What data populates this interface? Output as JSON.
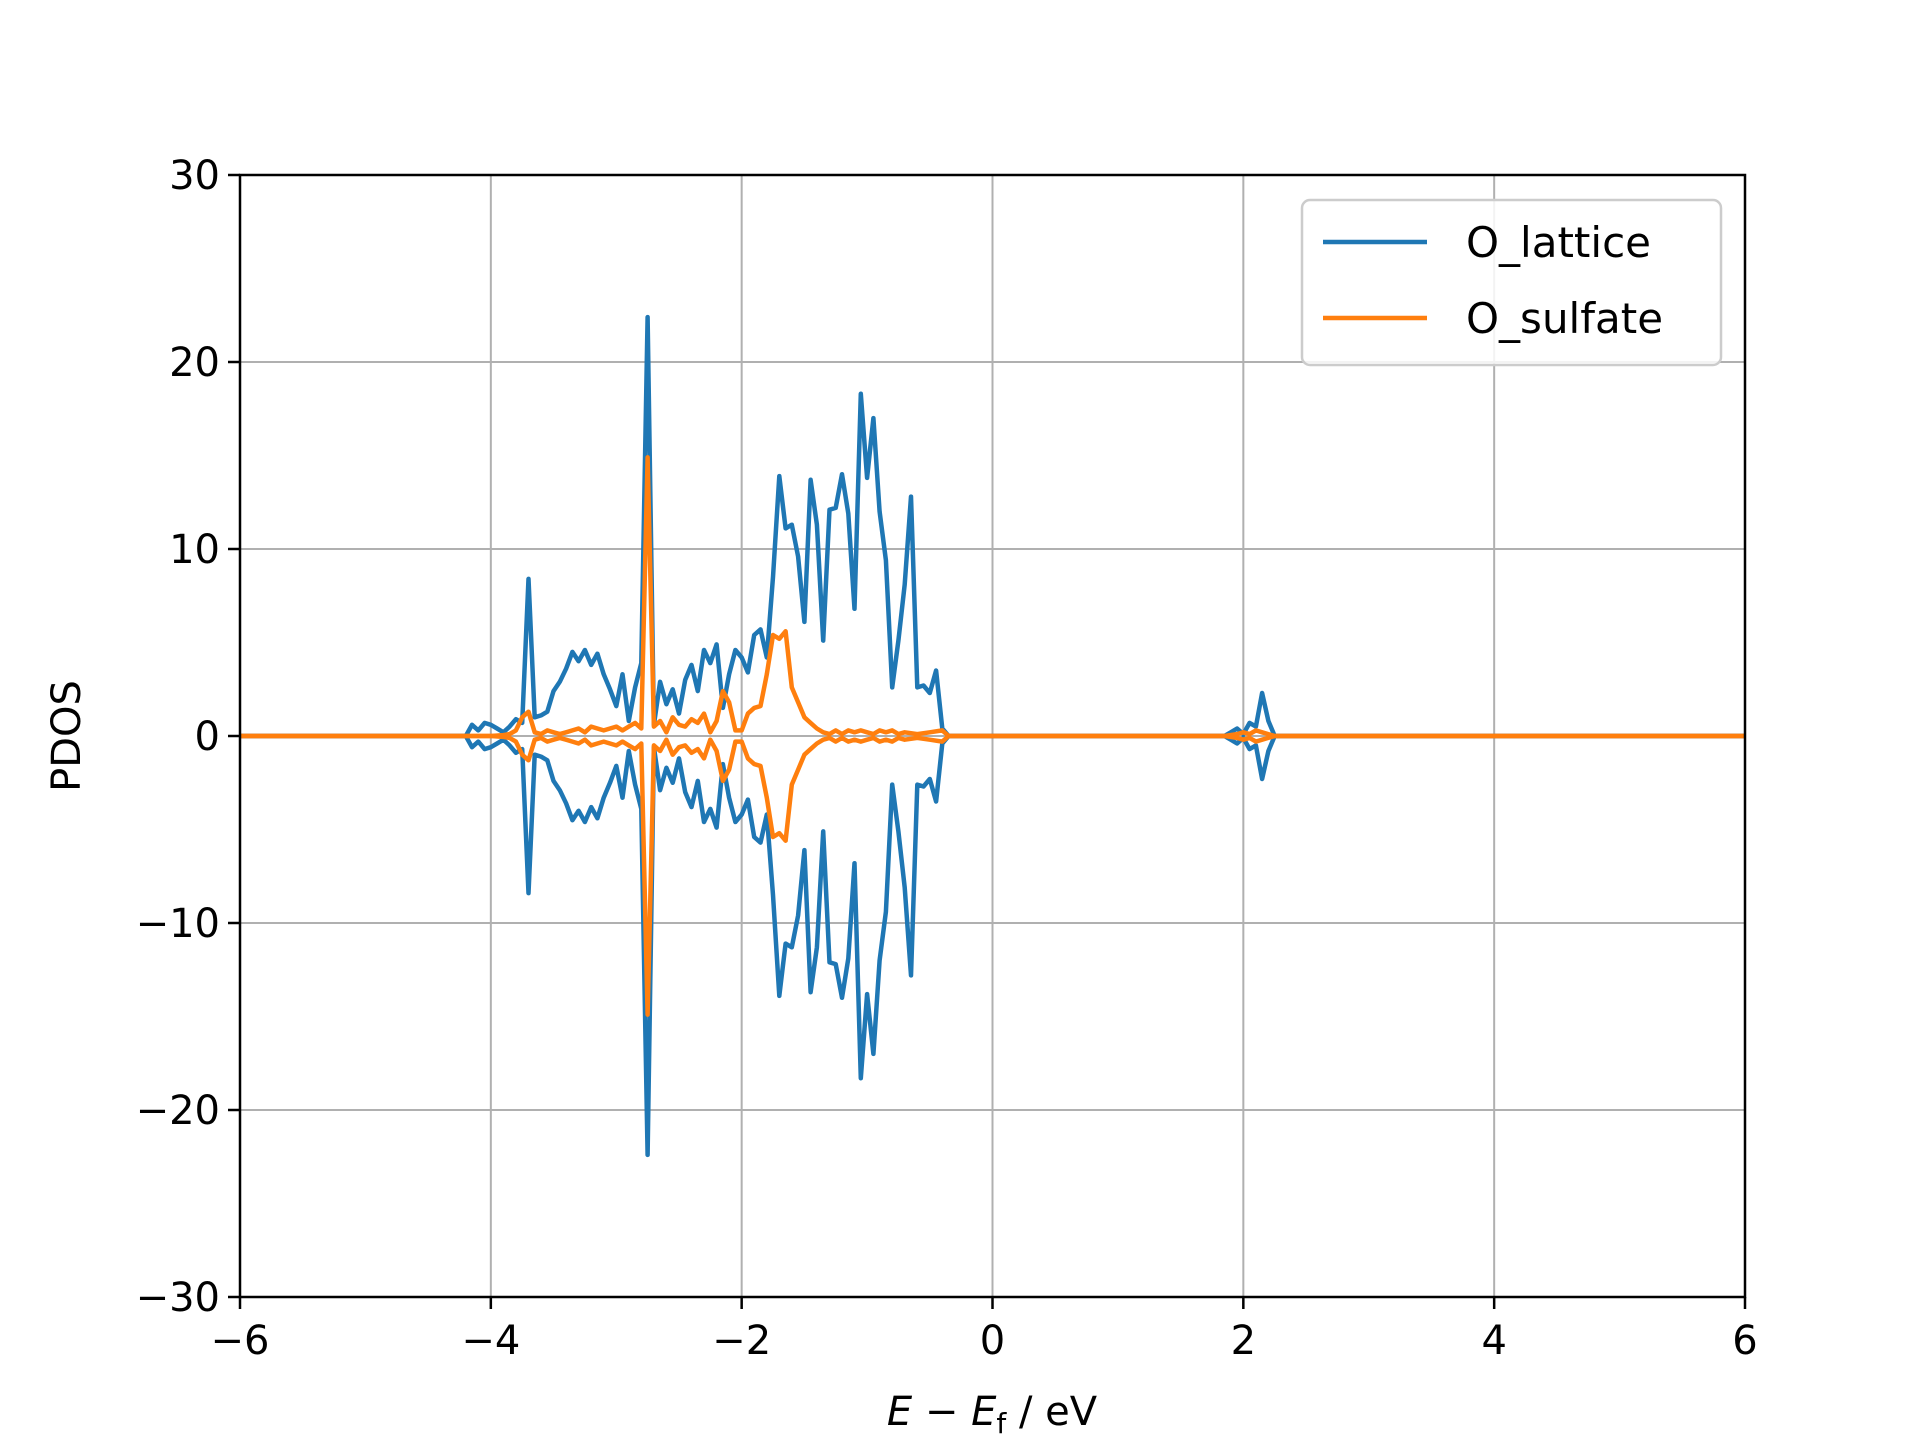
{
  "chart_data": {
    "type": "line",
    "title": "",
    "xlabel_parts": {
      "E": "E",
      "minus": " − ",
      "Ef_base": "E",
      "Ef_sub": "f",
      "unit": " / eV"
    },
    "ylabel": "PDOS",
    "xlim": [
      -6,
      6
    ],
    "ylim": [
      -30,
      30
    ],
    "x_ticks": [
      -6,
      -4,
      -2,
      0,
      2,
      4,
      6
    ],
    "x_tick_labels": [
      "−6",
      "−4",
      "−2",
      "0",
      "2",
      "4",
      "6"
    ],
    "y_ticks": [
      -30,
      -20,
      -10,
      0,
      10,
      20,
      30
    ],
    "y_tick_labels": [
      "−30",
      "−20",
      "−10",
      "0",
      "10",
      "20",
      "30"
    ],
    "grid": true,
    "legend_placement": "top-right",
    "mirrored": true,
    "series": [
      {
        "name": "O_lattice",
        "color": "#1f77b4",
        "x": [
          -6.0,
          -4.2,
          -4.15,
          -4.1,
          -4.05,
          -4.0,
          -3.95,
          -3.9,
          -3.85,
          -3.8,
          -3.75,
          -3.7,
          -3.65,
          -3.6,
          -3.55,
          -3.5,
          -3.45,
          -3.4,
          -3.35,
          -3.3,
          -3.25,
          -3.2,
          -3.15,
          -3.1,
          -3.05,
          -3.0,
          -2.95,
          -2.9,
          -2.85,
          -2.8,
          -2.75,
          -2.7,
          -2.65,
          -2.6,
          -2.55,
          -2.5,
          -2.45,
          -2.4,
          -2.35,
          -2.3,
          -2.25,
          -2.2,
          -2.15,
          -2.1,
          -2.05,
          -2.0,
          -1.95,
          -1.9,
          -1.85,
          -1.8,
          -1.75,
          -1.7,
          -1.65,
          -1.6,
          -1.55,
          -1.5,
          -1.45,
          -1.4,
          -1.35,
          -1.3,
          -1.25,
          -1.2,
          -1.15,
          -1.1,
          -1.05,
          -1.0,
          -0.95,
          -0.9,
          -0.85,
          -0.8,
          -0.75,
          -0.7,
          -0.65,
          -0.6,
          -0.55,
          -0.5,
          -0.45,
          -0.4,
          -0.35,
          1.85,
          1.9,
          1.95,
          2.0,
          2.05,
          2.1,
          2.15,
          2.2,
          2.25,
          6.0
        ],
        "y": [
          0,
          0,
          0.6,
          0.3,
          0.7,
          0.6,
          0.4,
          0.2,
          0.5,
          0.9,
          0.7,
          8.4,
          1.0,
          1.1,
          1.3,
          2.4,
          2.9,
          3.6,
          4.5,
          4.0,
          4.6,
          3.8,
          4.4,
          3.3,
          2.5,
          1.6,
          3.3,
          0.8,
          2.6,
          3.9,
          22.4,
          0.6,
          2.9,
          1.7,
          2.5,
          1.2,
          3.0,
          3.8,
          2.4,
          4.6,
          3.9,
          4.9,
          1.5,
          3.3,
          4.6,
          4.2,
          3.4,
          5.4,
          5.7,
          4.2,
          8.5,
          13.9,
          11.1,
          11.3,
          9.6,
          6.1,
          13.7,
          11.3,
          5.1,
          12.1,
          12.2,
          14.0,
          11.9,
          6.8,
          18.3,
          13.8,
          17.0,
          12.0,
          9.4,
          2.6,
          5.1,
          8.1,
          12.8,
          2.6,
          2.7,
          2.3,
          3.5,
          0.4,
          0,
          0,
          0.2,
          0.4,
          0.1,
          0.7,
          0.5,
          2.3,
          0.8,
          0,
          0
        ]
      },
      {
        "name": "O_sulfate",
        "color": "#ff7f0e",
        "x": [
          -6.0,
          -4.0,
          -3.9,
          -3.85,
          -3.8,
          -3.75,
          -3.7,
          -3.65,
          -3.6,
          -3.55,
          -3.5,
          -3.45,
          -3.4,
          -3.35,
          -3.3,
          -3.25,
          -3.2,
          -3.15,
          -3.1,
          -3.05,
          -3.0,
          -2.95,
          -2.9,
          -2.85,
          -2.8,
          -2.75,
          -2.7,
          -2.65,
          -2.6,
          -2.55,
          -2.5,
          -2.45,
          -2.4,
          -2.35,
          -2.3,
          -2.25,
          -2.2,
          -2.15,
          -2.1,
          -2.05,
          -2.0,
          -1.95,
          -1.9,
          -1.85,
          -1.8,
          -1.75,
          -1.7,
          -1.65,
          -1.6,
          -1.55,
          -1.5,
          -1.45,
          -1.4,
          -1.35,
          -1.3,
          -1.25,
          -1.2,
          -1.15,
          -1.1,
          -1.05,
          -1.0,
          -0.95,
          -0.9,
          -0.85,
          -0.8,
          -0.75,
          -0.7,
          -0.6,
          -0.5,
          -0.4,
          -0.35,
          1.85,
          1.95,
          2.0,
          2.05,
          2.1,
          2.15,
          2.25,
          6.0
        ],
        "y": [
          0,
          0,
          0.05,
          0.1,
          0.3,
          1.0,
          1.3,
          0.2,
          0.1,
          0.3,
          0.2,
          0.1,
          0.2,
          0.3,
          0.4,
          0.2,
          0.5,
          0.4,
          0.3,
          0.4,
          0.5,
          0.3,
          0.5,
          0.7,
          0.4,
          14.9,
          0.5,
          0.8,
          0.2,
          1.0,
          0.6,
          0.5,
          0.9,
          0.7,
          1.2,
          0.2,
          0.8,
          2.4,
          1.8,
          0.3,
          0.3,
          1.2,
          1.5,
          1.6,
          3.3,
          5.4,
          5.2,
          5.6,
          2.6,
          1.8,
          1.0,
          0.7,
          0.4,
          0.2,
          0.1,
          0.3,
          0.1,
          0.3,
          0.2,
          0.3,
          0.2,
          0.1,
          0.3,
          0.2,
          0.3,
          0.1,
          0.2,
          0.1,
          0.2,
          0.3,
          0,
          0,
          0.1,
          0.2,
          0.1,
          0.3,
          0.2,
          0,
          0
        ]
      }
    ]
  }
}
